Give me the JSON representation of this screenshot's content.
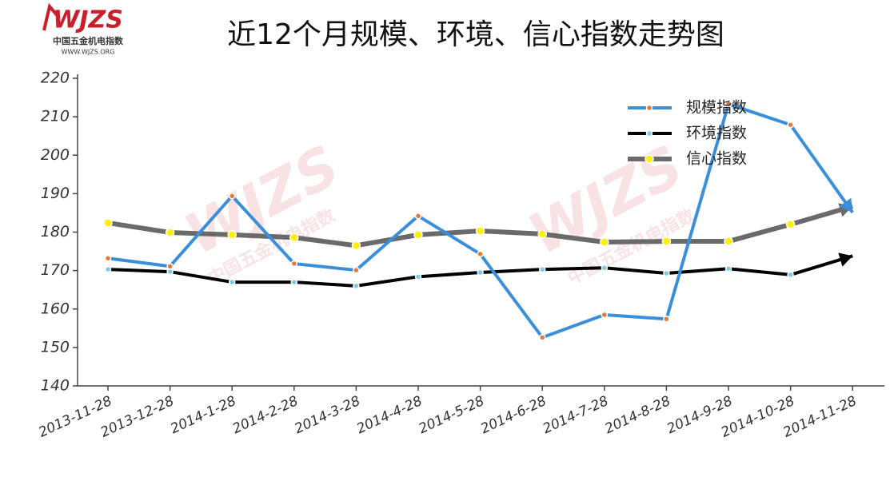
{
  "logo": {
    "mark": "WJZS",
    "name": "中国五金机电指数",
    "url": "WWW.WJZS.ORG"
  },
  "chart_data": {
    "type": "line",
    "title": "近12个月规模、环境、信心指数走势图",
    "categories": [
      "2013-11-28",
      "2013-12-28",
      "2014-1-28",
      "2014-2-28",
      "2014-3-28",
      "2014-4-28",
      "2014-5-28",
      "2014-6-28",
      "2014-7-28",
      "2014-8-28",
      "2014-9-28",
      "2014-10-28",
      "2014-11-28"
    ],
    "series": [
      {
        "name": "规模指数",
        "color": "#3a8fdb",
        "marker_color": "#e2783a",
        "values": [
          173.2,
          171.1,
          189.4,
          171.8,
          170.1,
          184.2,
          174.3,
          152.6,
          158.5,
          157.4,
          213.3,
          207.9,
          185.1
        ]
      },
      {
        "name": "环境指数",
        "color": "#000000",
        "marker_color": "#7ec8e8",
        "values": [
          170.3,
          169.7,
          167,
          167,
          166,
          168.4,
          169.5,
          170.3,
          170.7,
          169.3,
          170.5,
          168.9,
          173.8
        ]
      },
      {
        "name": "信心指数",
        "color": "#6a6a6a",
        "marker_color": "#ffef00",
        "values": [
          182.4,
          179.9,
          179.3,
          178.6,
          176.5,
          179.3,
          180.3,
          179.5,
          177.4,
          177.6,
          177.6,
          182,
          186.7
        ]
      }
    ],
    "ylim": [
      140,
      220
    ],
    "yticks": [
      140,
      150,
      160,
      170,
      180,
      190,
      200,
      210,
      220
    ],
    "legend": "upper right"
  }
}
